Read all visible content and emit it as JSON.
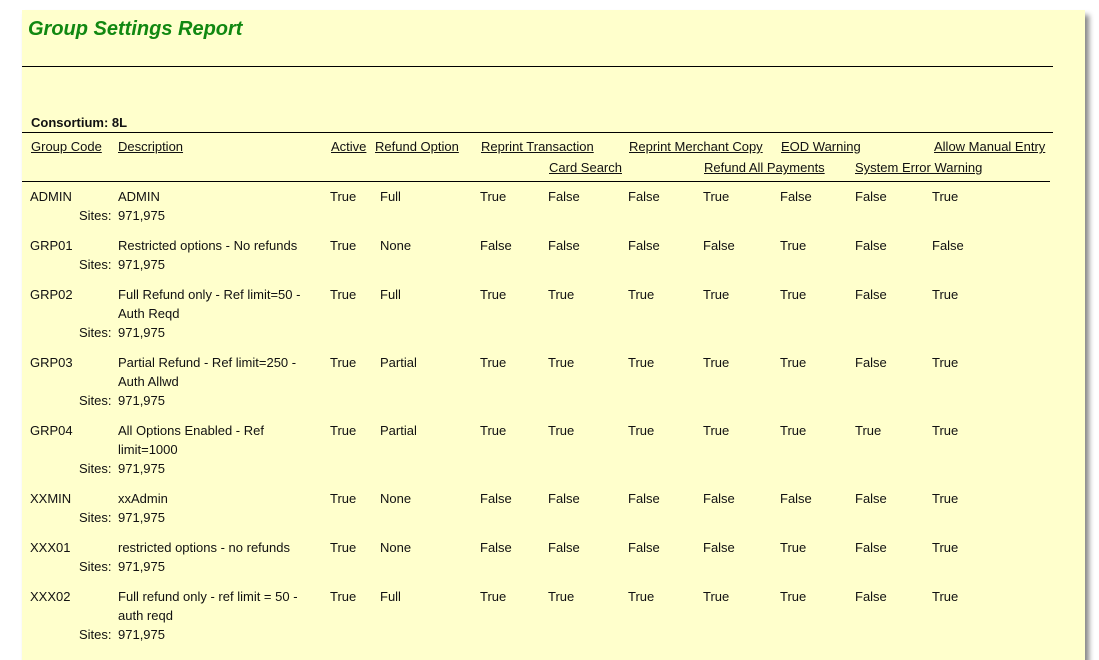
{
  "title": "Group Settings Report",
  "consortium": "Consortium: 8L",
  "columns": {
    "group_code": "Group Code",
    "description": "Description",
    "active": "Active",
    "refund_option": "Refund Option",
    "reprint_transaction": "Reprint Transaction",
    "card_search": "Card Search",
    "reprint_merchant_copy": "Reprint Merchant Copy",
    "refund_all_payments": "Refund All Payments",
    "eod_warning": "EOD Warning",
    "system_error_warning": "System Error Warning",
    "allow_manual_entry": "Allow Manual Entry"
  },
  "sites_label": "Sites:",
  "rows": [
    {
      "code": "ADMIN",
      "description": "ADMIN",
      "active": "True",
      "refund": "Full",
      "flags": [
        "True",
        "False",
        "False",
        "True",
        "False",
        "False",
        "True"
      ],
      "sites": "971,975"
    },
    {
      "code": "GRP01",
      "description": "Restricted options - No refunds",
      "active": "True",
      "refund": "None",
      "flags": [
        "False",
        "False",
        "False",
        "False",
        "True",
        "False",
        "False"
      ],
      "sites": "971,975"
    },
    {
      "code": "GRP02",
      "description": "Full Refund only - Ref limit=50 - Auth Reqd",
      "active": "True",
      "refund": "Full",
      "flags": [
        "True",
        "True",
        "True",
        "True",
        "True",
        "False",
        "True"
      ],
      "sites": "971,975"
    },
    {
      "code": "GRP03",
      "description": "Partial Refund - Ref limit=250 - Auth Allwd",
      "active": "True",
      "refund": "Partial",
      "flags": [
        "True",
        "True",
        "True",
        "True",
        "True",
        "False",
        "True"
      ],
      "sites": "971,975"
    },
    {
      "code": "GRP04",
      "description": "All Options Enabled - Ref limit=1000",
      "active": "True",
      "refund": "Partial",
      "flags": [
        "True",
        "True",
        "True",
        "True",
        "True",
        "True",
        "True"
      ],
      "sites": "971,975"
    },
    {
      "code": "XXMIN",
      "description": "xxAdmin",
      "active": "True",
      "refund": "None",
      "flags": [
        "False",
        "False",
        "False",
        "False",
        "False",
        "False",
        "True"
      ],
      "sites": "971,975"
    },
    {
      "code": "XXX01",
      "description": "restricted options - no refunds",
      "active": "True",
      "refund": "None",
      "flags": [
        "False",
        "False",
        "False",
        "False",
        "True",
        "False",
        "True"
      ],
      "sites": "971,975"
    },
    {
      "code": "XXX02",
      "description": "Full refund only - ref limit = 50 - auth reqd",
      "active": "True",
      "refund": "Full",
      "flags": [
        "True",
        "True",
        "True",
        "True",
        "True",
        "False",
        "True"
      ],
      "sites": "971,975"
    }
  ]
}
